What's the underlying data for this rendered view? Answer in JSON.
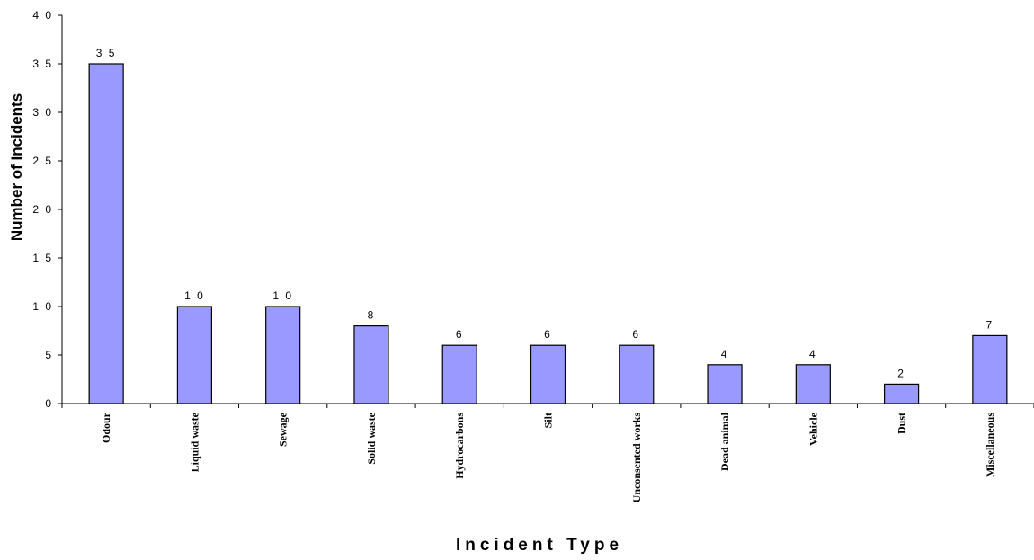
{
  "chart_data": {
    "type": "bar",
    "title": "",
    "xlabel": "Incident Type",
    "ylabel": "Number of Incidents",
    "categories": [
      "Odour",
      "Liquid waste",
      "Sewage",
      "Solid waste",
      "Hydrocarbons",
      "Silt",
      "Unconsented works",
      "Dead animal",
      "Vehicle",
      "Dust",
      "Miscellaneous"
    ],
    "values": [
      35,
      10,
      10,
      8,
      6,
      6,
      6,
      4,
      4,
      2,
      7
    ],
    "data_labels": [
      "3 5",
      "1 0",
      "1 0",
      "8",
      "6",
      "6",
      "6",
      "4",
      "4",
      "2",
      "7"
    ],
    "ylim": [
      0,
      40
    ],
    "yticks": [
      0,
      5,
      10,
      15,
      20,
      25,
      30,
      35,
      40
    ],
    "ytick_labels": [
      "0",
      "5",
      "1 0",
      "1 5",
      "2 0",
      "2 5",
      "3 0",
      "3 5",
      "4 0"
    ],
    "grid": false,
    "legend": "none",
    "colors": {
      "bar_fill": "#9999ff",
      "bar_stroke": "#000000",
      "axis": "#000000"
    }
  }
}
